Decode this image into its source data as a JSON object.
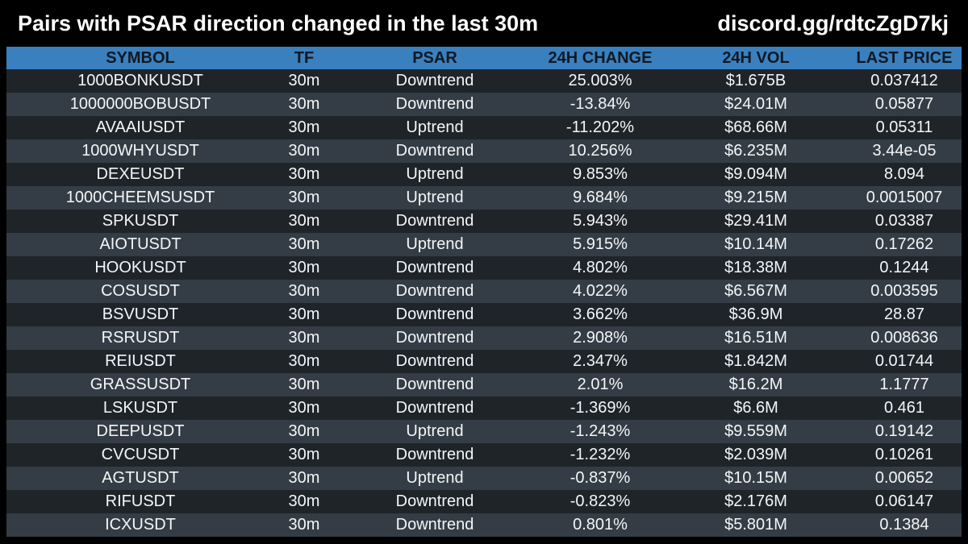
{
  "header": {
    "title": "Pairs with PSAR direction changed in the last 30m",
    "link": "discord.gg/rdtcZgD7kj"
  },
  "table": {
    "columns": [
      "SYMBOL",
      "TF",
      "PSAR",
      "24H CHANGE",
      "24H VOL",
      "LAST PRICE"
    ],
    "rows": [
      {
        "symbol": "1000BONKUSDT",
        "tf": "30m",
        "psar": "Downtrend",
        "change": "25.003%",
        "vol": "$1.675B",
        "price": "0.037412"
      },
      {
        "symbol": "1000000BOBUSDT",
        "tf": "30m",
        "psar": "Downtrend",
        "change": "-13.84%",
        "vol": "$24.01M",
        "price": "0.05877"
      },
      {
        "symbol": "AVAAIUSDT",
        "tf": "30m",
        "psar": "Uptrend",
        "change": "-11.202%",
        "vol": "$68.66M",
        "price": "0.05311"
      },
      {
        "symbol": "1000WHYUSDT",
        "tf": "30m",
        "psar": "Downtrend",
        "change": "10.256%",
        "vol": "$6.235M",
        "price": "3.44e-05"
      },
      {
        "symbol": "DEXEUSDT",
        "tf": "30m",
        "psar": "Uptrend",
        "change": "9.853%",
        "vol": "$9.094M",
        "price": "8.094"
      },
      {
        "symbol": "1000CHEEMSUSDT",
        "tf": "30m",
        "psar": "Uptrend",
        "change": "9.684%",
        "vol": "$9.215M",
        "price": "0.0015007"
      },
      {
        "symbol": "SPKUSDT",
        "tf": "30m",
        "psar": "Downtrend",
        "change": "5.943%",
        "vol": "$29.41M",
        "price": "0.03387"
      },
      {
        "symbol": "AIOTUSDT",
        "tf": "30m",
        "psar": "Uptrend",
        "change": "5.915%",
        "vol": "$10.14M",
        "price": "0.17262"
      },
      {
        "symbol": "HOOKUSDT",
        "tf": "30m",
        "psar": "Downtrend",
        "change": "4.802%",
        "vol": "$18.38M",
        "price": "0.1244"
      },
      {
        "symbol": "COSUSDT",
        "tf": "30m",
        "psar": "Downtrend",
        "change": "4.022%",
        "vol": "$6.567M",
        "price": "0.003595"
      },
      {
        "symbol": "BSVUSDT",
        "tf": "30m",
        "psar": "Downtrend",
        "change": "3.662%",
        "vol": "$36.9M",
        "price": "28.87"
      },
      {
        "symbol": "RSRUSDT",
        "tf": "30m",
        "psar": "Downtrend",
        "change": "2.908%",
        "vol": "$16.51M",
        "price": "0.008636"
      },
      {
        "symbol": "REIUSDT",
        "tf": "30m",
        "psar": "Downtrend",
        "change": "2.347%",
        "vol": "$1.842M",
        "price": "0.01744"
      },
      {
        "symbol": "GRASSUSDT",
        "tf": "30m",
        "psar": "Downtrend",
        "change": "2.01%",
        "vol": "$16.2M",
        "price": "1.1777"
      },
      {
        "symbol": "LSKUSDT",
        "tf": "30m",
        "psar": "Downtrend",
        "change": "-1.369%",
        "vol": "$6.6M",
        "price": "0.461"
      },
      {
        "symbol": "DEEPUSDT",
        "tf": "30m",
        "psar": "Uptrend",
        "change": "-1.243%",
        "vol": "$9.559M",
        "price": "0.19142"
      },
      {
        "symbol": "CVCUSDT",
        "tf": "30m",
        "psar": "Downtrend",
        "change": "-1.232%",
        "vol": "$2.039M",
        "price": "0.10261"
      },
      {
        "symbol": "AGTUSDT",
        "tf": "30m",
        "psar": "Uptrend",
        "change": "-0.837%",
        "vol": "$10.15M",
        "price": "0.00652"
      },
      {
        "symbol": "RIFUSDT",
        "tf": "30m",
        "psar": "Downtrend",
        "change": "-0.823%",
        "vol": "$2.176M",
        "price": "0.06147"
      },
      {
        "symbol": "ICXUSDT",
        "tf": "30m",
        "psar": "Downtrend",
        "change": "0.801%",
        "vol": "$5.801M",
        "price": "0.1384"
      }
    ]
  },
  "colors": {
    "background": "#000000",
    "header_bar": "#3a80bf",
    "row_dark": "#1f2429",
    "row_light": "#343d45",
    "text": "#f4f6f8"
  }
}
